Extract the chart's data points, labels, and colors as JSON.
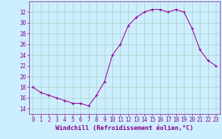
{
  "x": [
    0,
    1,
    2,
    3,
    4,
    5,
    6,
    7,
    8,
    9,
    10,
    11,
    12,
    13,
    14,
    15,
    16,
    17,
    18,
    19,
    20,
    21,
    22,
    23
  ],
  "y": [
    18,
    17,
    16.5,
    16,
    15.5,
    15,
    15,
    14.5,
    16.5,
    19,
    24,
    26,
    29.5,
    31,
    32,
    32.5,
    32.5,
    32,
    32.5,
    32,
    29,
    25,
    23,
    22
  ],
  "line_color": "#990099",
  "marker": "+",
  "bg_color": "#cceeff",
  "grid_color": "#aaccbb",
  "xlabel": "Windchill (Refroidissement éolien,°C)",
  "ylim": [
    13,
    34
  ],
  "xlim": [
    -0.5,
    23.5
  ],
  "yticks": [
    14,
    16,
    18,
    20,
    22,
    24,
    26,
    28,
    30,
    32
  ],
  "xticks": [
    0,
    1,
    2,
    3,
    4,
    5,
    6,
    7,
    8,
    9,
    10,
    11,
    12,
    13,
    14,
    15,
    16,
    17,
    18,
    19,
    20,
    21,
    22,
    23
  ],
  "tick_color": "#880088",
  "label_fontsize": 6.5,
  "tick_fontsize": 5.5,
  "axis_color": "#880088"
}
